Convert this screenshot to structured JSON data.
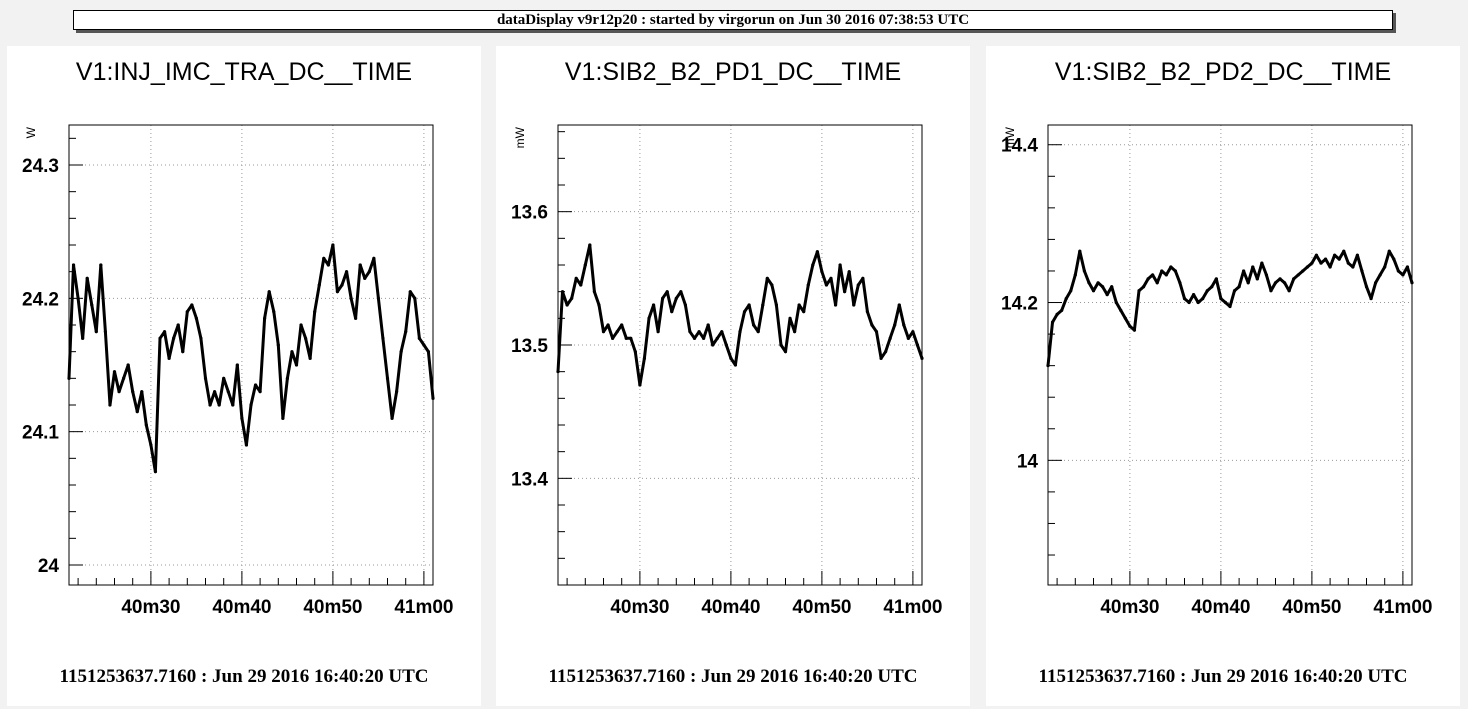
{
  "header": {
    "text": "dataDisplay v9r12p20 : started by virgorun on Jun 30 2016 07:38:53 UTC"
  },
  "chart_data": [
    {
      "type": "line",
      "title": "V1:INJ_IMC_TRA_DC__TIME",
      "ylabel": "W",
      "xlabel": "1151253637.7160 : Jun 29 2016 16:40:20 UTC",
      "xlim": [
        21,
        61
      ],
      "ylim": [
        23.985,
        24.33
      ],
      "xticks": [
        {
          "value": 30,
          "label": "40m30"
        },
        {
          "value": 40,
          "label": "40m40"
        },
        {
          "value": 50,
          "label": "40m50"
        },
        {
          "value": 60,
          "label": "41m00"
        }
      ],
      "yticks": [
        {
          "value": 24.0,
          "label": "24"
        },
        {
          "value": 24.1,
          "label": "24.1"
        },
        {
          "value": 24.2,
          "label": "24.2"
        },
        {
          "value": 24.3,
          "label": "24.3"
        }
      ],
      "grid": true,
      "series": [
        {
          "color": "#000000",
          "x": [
            21,
            21.5,
            22,
            22.5,
            23,
            23.5,
            24,
            24.5,
            25,
            25.5,
            26,
            26.5,
            27,
            27.5,
            28,
            28.5,
            29,
            29.5,
            30,
            30.5,
            31,
            31.5,
            32,
            32.5,
            33,
            33.5,
            34,
            34.5,
            35,
            35.5,
            36,
            36.5,
            37,
            37.5,
            38,
            38.5,
            39,
            39.5,
            40,
            40.5,
            41,
            41.5,
            42,
            42.5,
            43,
            43.5,
            44,
            44.5,
            45,
            45.5,
            46,
            46.5,
            47,
            47.5,
            48,
            48.5,
            49,
            49.5,
            50,
            50.5,
            51,
            51.5,
            52,
            52.5,
            53,
            53.5,
            54,
            54.5,
            55,
            55.5,
            56,
            56.5,
            57,
            57.5,
            58,
            58.5,
            59,
            59.5,
            60,
            60.5,
            61
          ],
          "y": [
            24.14,
            24.225,
            24.2,
            24.17,
            24.215,
            24.195,
            24.175,
            24.225,
            24.175,
            24.12,
            24.145,
            24.13,
            24.14,
            24.15,
            24.13,
            24.115,
            24.13,
            24.105,
            24.09,
            24.07,
            24.17,
            24.175,
            24.155,
            24.17,
            24.18,
            24.16,
            24.19,
            24.195,
            24.185,
            24.17,
            24.14,
            24.12,
            24.13,
            24.12,
            24.14,
            24.13,
            24.12,
            24.15,
            24.11,
            24.09,
            24.12,
            24.135,
            24.13,
            24.185,
            24.205,
            24.19,
            24.165,
            24.11,
            24.14,
            24.16,
            24.15,
            24.18,
            24.17,
            24.155,
            24.19,
            24.21,
            24.23,
            24.225,
            24.24,
            24.205,
            24.21,
            24.22,
            24.2,
            24.185,
            24.225,
            24.215,
            24.22,
            24.23,
            24.2,
            24.17,
            24.14,
            24.11,
            24.13,
            24.16,
            24.175,
            24.205,
            24.2,
            24.17,
            24.165,
            24.16,
            24.125
          ]
        }
      ]
    },
    {
      "type": "line",
      "title": "V1:SIB2_B2_PD1_DC__TIME",
      "ylabel": "mW",
      "xlabel": "1151253637.7160 : Jun 29 2016 16:40:20 UTC",
      "xlim": [
        21,
        61
      ],
      "ylim": [
        13.32,
        13.665
      ],
      "xticks": [
        {
          "value": 30,
          "label": "40m30"
        },
        {
          "value": 40,
          "label": "40m40"
        },
        {
          "value": 50,
          "label": "40m50"
        },
        {
          "value": 60,
          "label": "41m00"
        }
      ],
      "yticks": [
        {
          "value": 13.4,
          "label": "13.4"
        },
        {
          "value": 13.5,
          "label": "13.5"
        },
        {
          "value": 13.6,
          "label": "13.6"
        }
      ],
      "grid": true,
      "series": [
        {
          "color": "#000000",
          "x": [
            21,
            21.5,
            22,
            22.5,
            23,
            23.5,
            24,
            24.5,
            25,
            25.5,
            26,
            26.5,
            27,
            27.5,
            28,
            28.5,
            29,
            29.5,
            30,
            30.5,
            31,
            31.5,
            32,
            32.5,
            33,
            33.5,
            34,
            34.5,
            35,
            35.5,
            36,
            36.5,
            37,
            37.5,
            38,
            38.5,
            39,
            39.5,
            40,
            40.5,
            41,
            41.5,
            42,
            42.5,
            43,
            43.5,
            44,
            44.5,
            45,
            45.5,
            46,
            46.5,
            47,
            47.5,
            48,
            48.5,
            49,
            49.5,
            50,
            50.5,
            51,
            51.5,
            52,
            52.5,
            53,
            53.5,
            54,
            54.5,
            55,
            55.5,
            56,
            56.5,
            57,
            57.5,
            58,
            58.5,
            59,
            59.5,
            60,
            60.5,
            61
          ],
          "y": [
            13.48,
            13.54,
            13.53,
            13.535,
            13.55,
            13.545,
            13.56,
            13.575,
            13.54,
            13.53,
            13.51,
            13.515,
            13.505,
            13.51,
            13.515,
            13.505,
            13.505,
            13.495,
            13.47,
            13.49,
            13.52,
            13.53,
            13.51,
            13.535,
            13.54,
            13.525,
            13.535,
            13.54,
            13.53,
            13.51,
            13.505,
            13.51,
            13.505,
            13.515,
            13.5,
            13.505,
            13.51,
            13.5,
            13.49,
            13.485,
            13.51,
            13.525,
            13.53,
            13.515,
            13.51,
            13.53,
            13.55,
            13.545,
            13.53,
            13.5,
            13.495,
            13.52,
            13.51,
            13.53,
            13.525,
            13.545,
            13.56,
            13.57,
            13.555,
            13.545,
            13.55,
            13.53,
            13.56,
            13.54,
            13.555,
            13.53,
            13.545,
            13.55,
            13.525,
            13.515,
            13.51,
            13.49,
            13.495,
            13.505,
            13.515,
            13.53,
            13.515,
            13.505,
            13.51,
            13.5,
            13.49
          ]
        }
      ]
    },
    {
      "type": "line",
      "title": "V1:SIB2_B2_PD2_DC__TIME",
      "ylabel": "mW",
      "xlabel": "1151253637.7160 : Jun 29 2016 16:40:20 UTC",
      "xlim": [
        21,
        61
      ],
      "ylim": [
        13.842,
        14.425
      ],
      "xticks": [
        {
          "value": 30,
          "label": "40m30"
        },
        {
          "value": 40,
          "label": "40m40"
        },
        {
          "value": 50,
          "label": "40m50"
        },
        {
          "value": 60,
          "label": "41m00"
        }
      ],
      "yticks": [
        {
          "value": 14.0,
          "label": "14"
        },
        {
          "value": 14.2,
          "label": "14.2"
        },
        {
          "value": 14.4,
          "label": "14.4"
        }
      ],
      "grid": true,
      "series": [
        {
          "color": "#000000",
          "x": [
            21,
            21.5,
            22,
            22.5,
            23,
            23.5,
            24,
            24.5,
            25,
            25.5,
            26,
            26.5,
            27,
            27.5,
            28,
            28.5,
            29,
            29.5,
            30,
            30.5,
            31,
            31.5,
            32,
            32.5,
            33,
            33.5,
            34,
            34.5,
            35,
            35.5,
            36,
            36.5,
            37,
            37.5,
            38,
            38.5,
            39,
            39.5,
            40,
            40.5,
            41,
            41.5,
            42,
            42.5,
            43,
            43.5,
            44,
            44.5,
            45,
            45.5,
            46,
            46.5,
            47,
            47.5,
            48,
            48.5,
            49,
            49.5,
            50,
            50.5,
            51,
            51.5,
            52,
            52.5,
            53,
            53.5,
            54,
            54.5,
            55,
            55.5,
            56,
            56.5,
            57,
            57.5,
            58,
            58.5,
            59,
            59.5,
            60,
            60.5,
            61
          ],
          "y": [
            14.12,
            14.175,
            14.185,
            14.19,
            14.205,
            14.215,
            14.235,
            14.265,
            14.24,
            14.225,
            14.215,
            14.225,
            14.22,
            14.21,
            14.22,
            14.2,
            14.19,
            14.18,
            14.17,
            14.165,
            14.215,
            14.22,
            14.23,
            14.235,
            14.225,
            14.24,
            14.235,
            14.245,
            14.24,
            14.225,
            14.205,
            14.2,
            14.21,
            14.2,
            14.205,
            14.215,
            14.22,
            14.23,
            14.205,
            14.2,
            14.195,
            14.215,
            14.22,
            14.24,
            14.225,
            14.245,
            14.23,
            14.25,
            14.235,
            14.215,
            14.225,
            14.23,
            14.225,
            14.215,
            14.23,
            14.235,
            14.24,
            14.245,
            14.25,
            14.26,
            14.25,
            14.255,
            14.245,
            14.26,
            14.255,
            14.265,
            14.25,
            14.245,
            14.26,
            14.24,
            14.22,
            14.205,
            14.225,
            14.235,
            14.245,
            14.265,
            14.255,
            14.24,
            14.235,
            14.245,
            14.225
          ]
        }
      ]
    }
  ]
}
